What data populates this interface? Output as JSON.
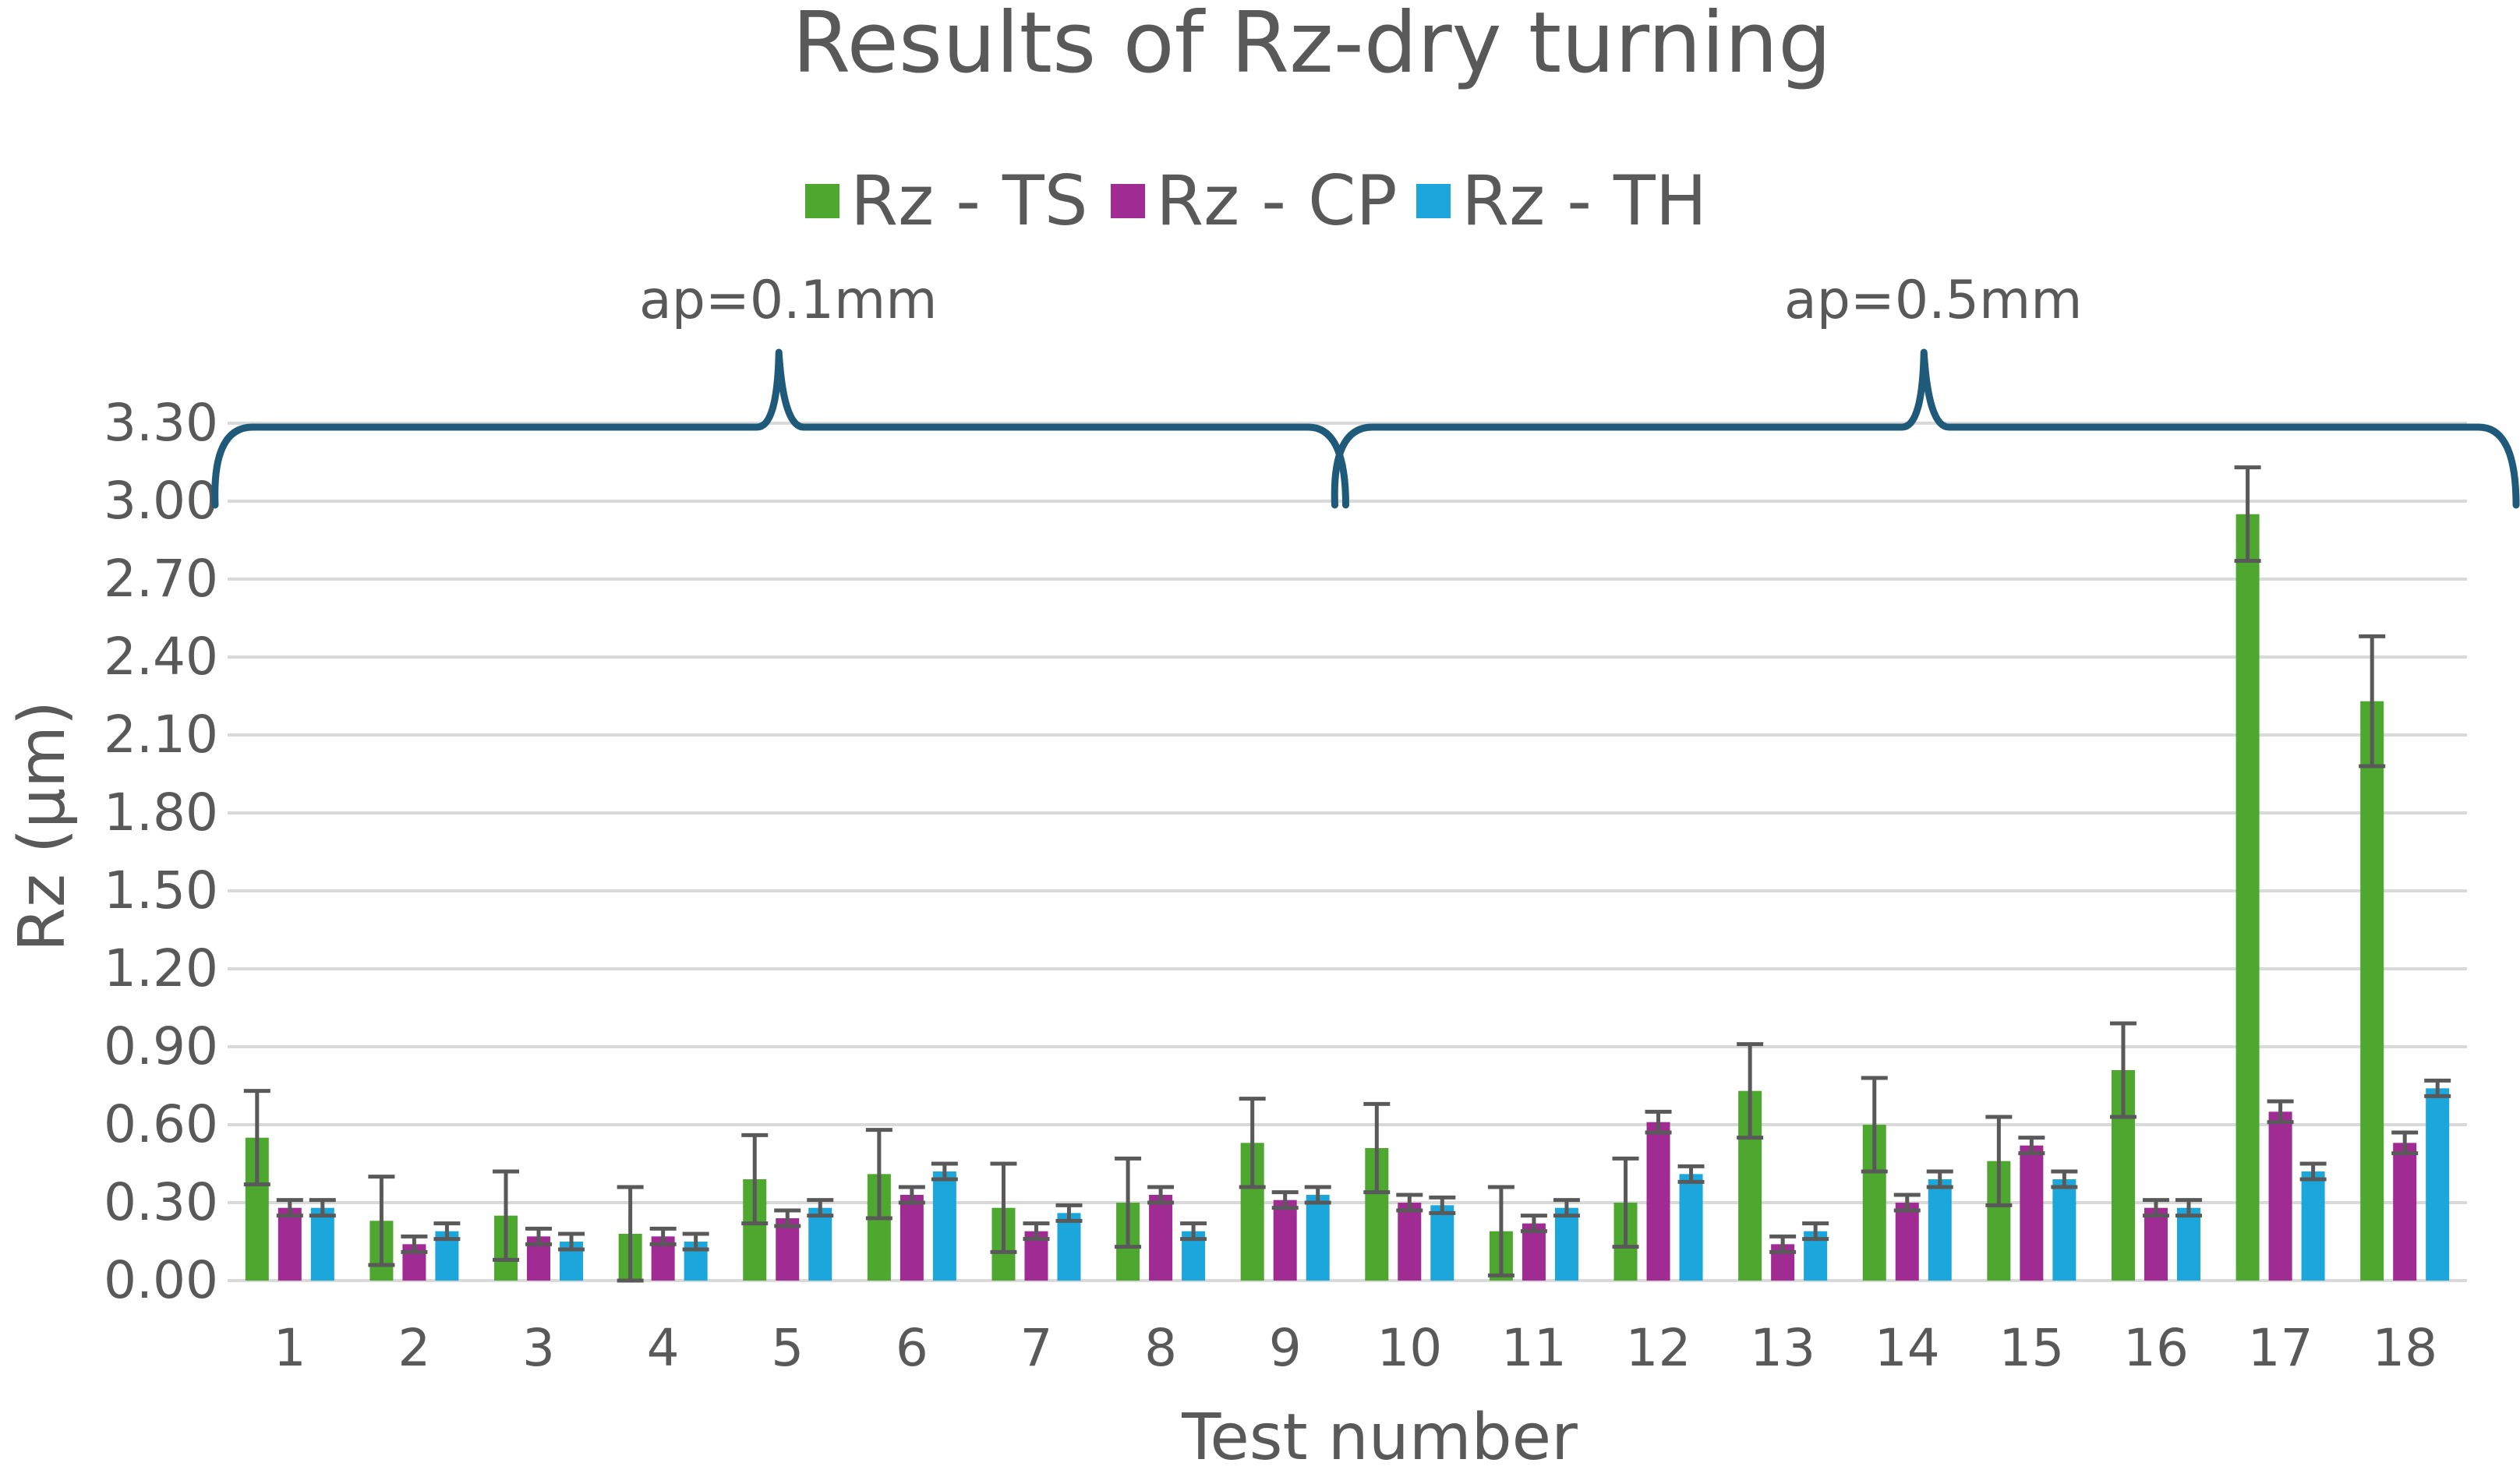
{
  "chart_data": {
    "type": "bar",
    "title": "Results of Rz-dry turning",
    "xlabel": "Test number",
    "ylabel": "Rz (µm)",
    "ylim": [
      0,
      3.3
    ],
    "yticks": [
      "0.00",
      "0.30",
      "0.60",
      "0.90",
      "1.20",
      "1.50",
      "1.80",
      "2.10",
      "2.40",
      "2.70",
      "3.00",
      "3.30"
    ],
    "categories": [
      "1",
      "2",
      "3",
      "4",
      "5",
      "6",
      "7",
      "8",
      "9",
      "10",
      "11",
      "12",
      "13",
      "14",
      "15",
      "16",
      "17",
      "18"
    ],
    "grid": true,
    "legend_position": "top",
    "series": [
      {
        "name": "Rz - TS",
        "color": "#4ea72e",
        "values": [
          0.55,
          0.23,
          0.25,
          0.18,
          0.39,
          0.41,
          0.28,
          0.3,
          0.53,
          0.51,
          0.19,
          0.3,
          0.73,
          0.6,
          0.46,
          0.81,
          2.95,
          2.23
        ],
        "errors": [
          0.18,
          0.17,
          0.17,
          0.18,
          0.17,
          0.17,
          0.17,
          0.17,
          0.17,
          0.17,
          0.17,
          0.17,
          0.18,
          0.18,
          0.17,
          0.18,
          0.18,
          0.25
        ]
      },
      {
        "name": "Rz - CP",
        "color": "#a02b93",
        "values": [
          0.28,
          0.14,
          0.17,
          0.17,
          0.24,
          0.33,
          0.19,
          0.33,
          0.31,
          0.3,
          0.22,
          0.61,
          0.14,
          0.3,
          0.52,
          0.28,
          0.65,
          0.53
        ],
        "errors": [
          0.03,
          0.03,
          0.03,
          0.03,
          0.03,
          0.03,
          0.03,
          0.03,
          0.03,
          0.03,
          0.03,
          0.04,
          0.03,
          0.03,
          0.03,
          0.03,
          0.04,
          0.04
        ]
      },
      {
        "name": "Rz - TH",
        "color": "#1ba6dc",
        "values": [
          0.28,
          0.19,
          0.15,
          0.15,
          0.28,
          0.42,
          0.26,
          0.19,
          0.33,
          0.29,
          0.28,
          0.41,
          0.19,
          0.39,
          0.39,
          0.28,
          0.42,
          0.74
        ],
        "errors": [
          0.03,
          0.03,
          0.03,
          0.03,
          0.03,
          0.03,
          0.03,
          0.03,
          0.03,
          0.03,
          0.03,
          0.03,
          0.03,
          0.03,
          0.03,
          0.03,
          0.03,
          0.03
        ]
      }
    ],
    "annotations": [
      {
        "label": "ap=0.1mm",
        "from_category": "1",
        "to_category": "9"
      },
      {
        "label": "ap=0.5mm",
        "from_category": "10",
        "to_category": "18"
      }
    ],
    "annotation_color": "#1f5a7a"
  }
}
